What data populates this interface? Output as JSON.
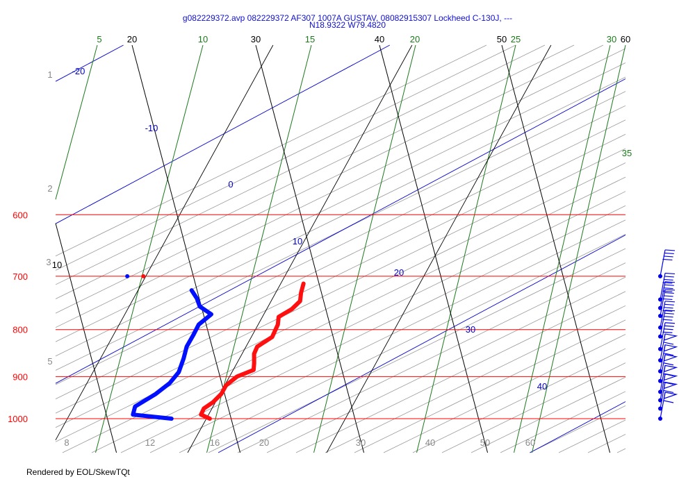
{
  "header": {
    "line1": "g082229372.avp 082229372 AF307 1007A GUSTAV, 08082915307 Lockheed C-130J, ---",
    "line2": "N18.9322 W79.4820"
  },
  "footer": "Rendered by EOL/SkewTQt",
  "colors": {
    "pressure": "#ff0000",
    "temperature_line": "#000000",
    "mixing_ratio": "#1a7a1a",
    "dry_adiabat": "#0000cc",
    "moist_adiabat": "#999999",
    "temperature_trace": "#ff1010",
    "dewpoint_trace": "#0010ff",
    "wind": "#0000ee",
    "height_label": "#888888"
  },
  "chart_data": {
    "type": "skew-t",
    "pressure_levels": [
      {
        "p": 600,
        "label": "600"
      },
      {
        "p": 700,
        "label": "700"
      },
      {
        "p": 800,
        "label": "800"
      },
      {
        "p": 900,
        "label": "900"
      },
      {
        "p": 1000,
        "label": "1000"
      }
    ],
    "temperature_lines": [
      {
        "t": 20,
        "label": "20",
        "x_top": 190
      },
      {
        "t": 30,
        "label": "30",
        "x_top": 368
      },
      {
        "t": 40,
        "label": "40",
        "x_top": 546
      },
      {
        "t": 50,
        "label": "50",
        "x_top": 722
      },
      {
        "t": 60,
        "label": "60",
        "x_top": 900
      },
      {
        "t": 10,
        "label": "10",
        "x_top": 12
      }
    ],
    "mixing_ratio": [
      {
        "label": "5"
      },
      {
        "label": "10"
      },
      {
        "label": "15"
      },
      {
        "label": "20"
      },
      {
        "label": "25"
      },
      {
        "label": "30"
      },
      {
        "label": "35"
      }
    ],
    "dry_adiabat_labels": [
      "-20",
      "-10",
      "0",
      "10",
      "20",
      "30",
      "40"
    ],
    "bottom_labels": [
      "8",
      "12",
      "16",
      "20",
      "30",
      "40",
      "50",
      "60"
    ],
    "height_labels": [
      "1",
      "2",
      "3",
      "5"
    ],
    "temperature_profile": [
      {
        "p": 1000,
        "t": 26.3
      },
      {
        "p": 990,
        "t": 25.5
      },
      {
        "p": 975,
        "t": 25.6
      },
      {
        "p": 960,
        "t": 26.2
      },
      {
        "p": 940,
        "t": 26.7
      },
      {
        "p": 920,
        "t": 26.9
      },
      {
        "p": 900,
        "t": 27.6
      },
      {
        "p": 885,
        "t": 28.8
      },
      {
        "p": 870,
        "t": 28.7
      },
      {
        "p": 850,
        "t": 28.5
      },
      {
        "p": 835,
        "t": 28.6
      },
      {
        "p": 815,
        "t": 29.6
      },
      {
        "p": 790,
        "t": 29.8
      },
      {
        "p": 775,
        "t": 29.7
      },
      {
        "p": 760,
        "t": 30.6
      },
      {
        "p": 745,
        "t": 31.1
      },
      {
        "p": 730,
        "t": 31.0
      },
      {
        "p": 713,
        "t": 31.0
      }
    ],
    "dewpoint_profile": [
      {
        "p": 1000,
        "t": 23.2
      },
      {
        "p": 990,
        "t": 20.0
      },
      {
        "p": 970,
        "t": 20.0
      },
      {
        "p": 940,
        "t": 21.4
      },
      {
        "p": 915,
        "t": 22.3
      },
      {
        "p": 890,
        "t": 22.8
      },
      {
        "p": 860,
        "t": 22.9
      },
      {
        "p": 835,
        "t": 22.9
      },
      {
        "p": 810,
        "t": 23.2
      },
      {
        "p": 790,
        "t": 23.4
      },
      {
        "p": 770,
        "t": 24.2
      },
      {
        "p": 755,
        "t": 23.1
      },
      {
        "p": 740,
        "t": 22.7
      },
      {
        "p": 725,
        "t": 22.1
      }
    ],
    "extra_points": [
      {
        "series": "dewpoint",
        "p": 700,
        "t": 16.6
      },
      {
        "series": "temperature",
        "p": 700,
        "t": 17.9
      }
    ],
    "wind_barbs": [
      {
        "p": 700,
        "speed_kt": 35
      },
      {
        "p": 742,
        "speed_kt": 35
      },
      {
        "p": 758,
        "speed_kt": 35
      },
      {
        "p": 773,
        "speed_kt": 35
      },
      {
        "p": 796,
        "speed_kt": 35
      },
      {
        "p": 814,
        "speed_kt": 35
      },
      {
        "p": 840,
        "speed_kt": 35
      },
      {
        "p": 864,
        "speed_kt": 50
      },
      {
        "p": 888,
        "speed_kt": 50
      },
      {
        "p": 910,
        "speed_kt": 50
      },
      {
        "p": 935,
        "speed_kt": 50
      },
      {
        "p": 955,
        "speed_kt": 50
      },
      {
        "p": 975,
        "speed_kt": 50
      },
      {
        "p": 1000,
        "speed_kt": 50
      }
    ]
  }
}
